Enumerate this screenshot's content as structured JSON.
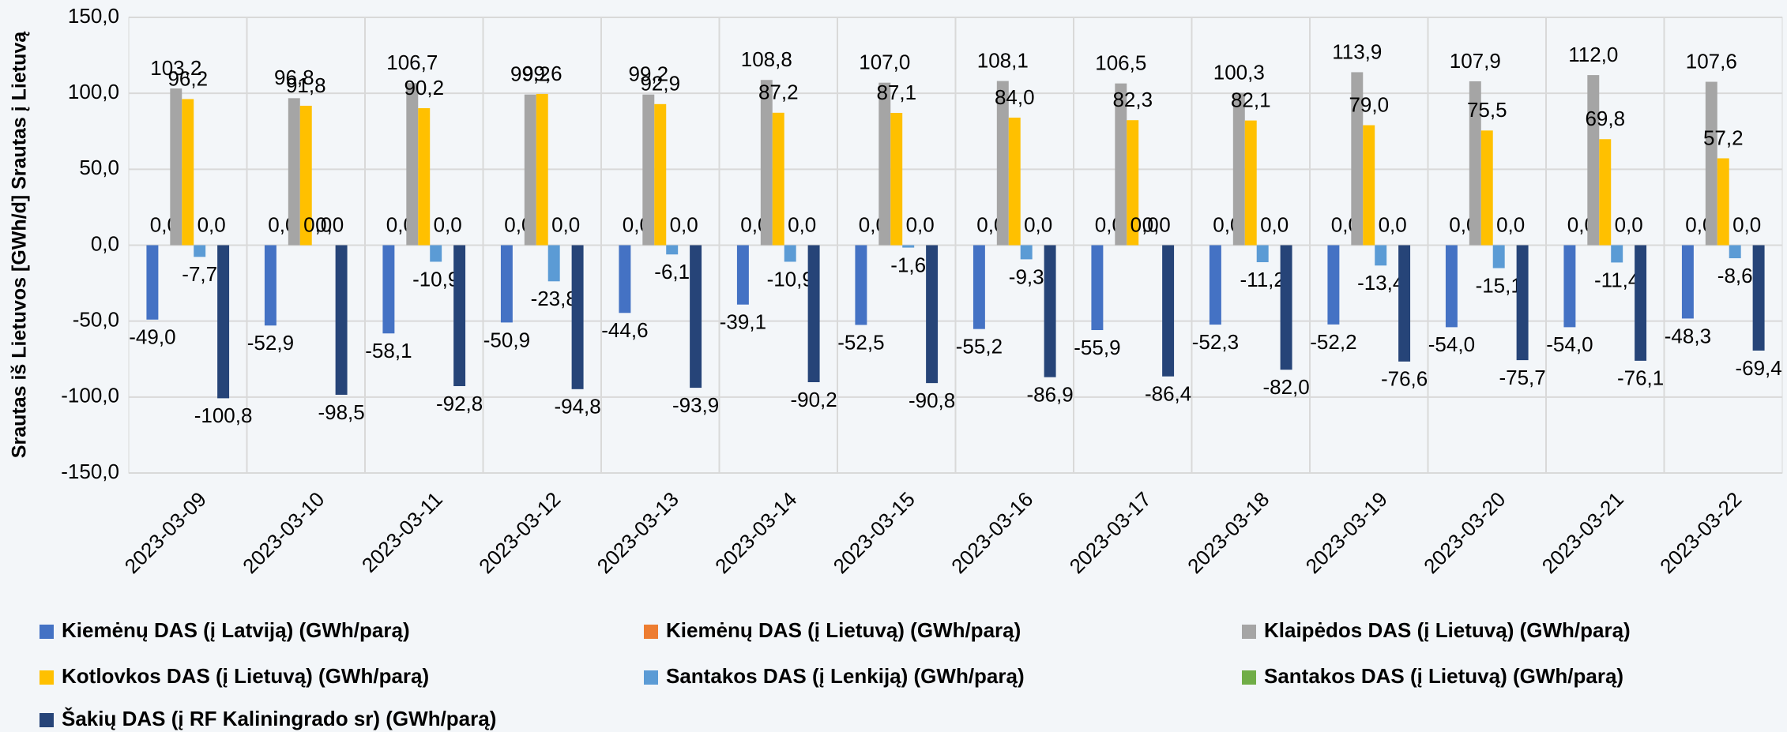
{
  "chart_data": {
    "type": "bar",
    "y_label": "Srautas iš Lietuvos [GWh/d] Srautas į Lietuvą",
    "categories": [
      "2023-03-09",
      "2023-03-10",
      "2023-03-11",
      "2023-03-12",
      "2023-03-13",
      "2023-03-14",
      "2023-03-15",
      "2023-03-16",
      "2023-03-17",
      "2023-03-18",
      "2023-03-19",
      "2023-03-20",
      "2023-03-21",
      "2023-03-22"
    ],
    "series": [
      {
        "name": "Kiemėnų DAS (į Latviją) (GWh/parą)",
        "color": "#4472c4",
        "values": [
          -49.0,
          -52.9,
          -58.1,
          -50.9,
          -44.6,
          -39.1,
          -52.5,
          -55.2,
          -55.9,
          -52.3,
          -52.2,
          -54.0,
          -54.0,
          -48.3
        ],
        "value_labels": [
          "-49,0",
          "-52,9",
          "-58,1",
          "-50,9",
          "-44,6",
          "-39,1",
          "-52,5",
          "-55,2",
          "-55,9",
          "-52,3",
          "-52,2",
          "-54,0",
          "-54,0",
          "-48,3"
        ]
      },
      {
        "name": "Kiemėnų DAS (į Lietuvą) (GWh/parą)",
        "color": "#ed7d31",
        "values": [
          0,
          0,
          0,
          0,
          0,
          0,
          0,
          0,
          0,
          0,
          0,
          0,
          0,
          0
        ],
        "value_labels": [
          "0,0",
          "0,0",
          "0,0",
          "0,0",
          "0,0",
          "0,0",
          "0,0",
          "0,0",
          "0,0",
          "0,0",
          "0,0",
          "0,0",
          "0,0",
          "0,0"
        ]
      },
      {
        "name": "Klaipėdos DAS (į Lietuvą) (GWh/parą)",
        "color": "#a5a5a5",
        "values": [
          103.2,
          96.8,
          106.7,
          99.2,
          99.2,
          108.8,
          107.0,
          108.1,
          106.5,
          100.3,
          113.9,
          107.9,
          112.0,
          107.6
        ],
        "value_labels": [
          "103,2",
          "96,8",
          "106,7",
          "99,2",
          "99,2",
          "108,8",
          "107,0",
          "108,1",
          "106,5",
          "100,3",
          "113,9",
          "107,9",
          "112,0",
          "107,6"
        ]
      },
      {
        "name": "Kotlovkos DAS (į Lietuvą) (GWh/parą)",
        "color": "#ffc000",
        "values": [
          96.2,
          91.8,
          90.2,
          99.6,
          92.9,
          87.2,
          87.1,
          84.0,
          82.3,
          82.1,
          79.0,
          75.5,
          69.8,
          57.2
        ],
        "value_labels": [
          "96,2",
          "91,8",
          "90,2",
          "99,6",
          "92,9",
          "87,2",
          "87,1",
          "84,0",
          "82,3",
          "82,1",
          "79,0",
          "75,5",
          "69,8",
          "57,2"
        ]
      },
      {
        "name": "Santakos DAS (į Lenkiją) (GWh/parą)",
        "color": "#5b9bd5",
        "values": [
          -7.7,
          0,
          -10.9,
          -23.8,
          -6.1,
          -10.9,
          -1.6,
          -9.3,
          0,
          -11.2,
          -13.4,
          -15.1,
          -11.4,
          -8.6
        ],
        "value_labels": [
          "-7,7",
          "0,0",
          "-10,9",
          "-23,8",
          "-6,1",
          "-10,9",
          "-1,6",
          "-9,3",
          "0,0",
          "-11,2",
          "-13,4",
          "-15,1",
          "-11,4",
          "-8,6"
        ]
      },
      {
        "name": "Santakos DAS (į Lietuvą) (GWh/parą)",
        "color": "#70ad47",
        "values": [
          0,
          0,
          0,
          0,
          0,
          0,
          0,
          0,
          0,
          0,
          0,
          0,
          0,
          0
        ],
        "value_labels": [
          "0,0",
          "0,0",
          "0,0",
          "0,0",
          "0,0",
          "0,0",
          "0,0",
          "0,0",
          "0,0",
          "0,0",
          "0,0",
          "0,0",
          "0,0",
          "0,0"
        ]
      },
      {
        "name": "Šakių DAS (į RF Kaliningrado sr) (GWh/parą)",
        "color": "#264478",
        "values": [
          -100.8,
          -98.5,
          -92.8,
          -94.8,
          -93.9,
          -90.2,
          -90.8,
          -86.9,
          -86.4,
          -82.0,
          -76.6,
          -75.7,
          -76.1,
          -69.4
        ],
        "value_labels": [
          "-100,8",
          "-98,5",
          "-92,8",
          "-94,8",
          "-93,9",
          "-90,2",
          "-90,8",
          "-86,9",
          "-86,4",
          "-82,0",
          "-76,6",
          "-75,7",
          "-76,1",
          "-69,4"
        ]
      }
    ],
    "ylim": [
      -150,
      150
    ],
    "yticks": [
      {
        "value": -150,
        "label": "-150,0"
      },
      {
        "value": -100,
        "label": "-100,0"
      },
      {
        "value": -50,
        "label": "-50,0"
      },
      {
        "value": 0,
        "label": "0,0"
      },
      {
        "value": 50,
        "label": "50,0"
      },
      {
        "value": 100,
        "label": "100,0"
      },
      {
        "value": 150,
        "label": "150,0"
      }
    ],
    "grid": true,
    "legend": "bottom"
  }
}
